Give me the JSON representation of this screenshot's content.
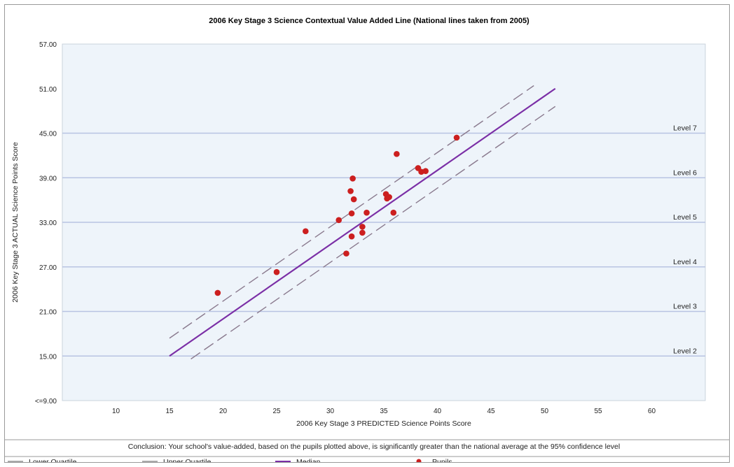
{
  "chart_data": {
    "type": "scatter",
    "title": "2006 Key Stage 3 Science Contextual Value Added Line (National lines taken from 2005)",
    "xlabel": "2006 Key Stage 3 PREDICTED Science Points Score",
    "ylabel": "2006 Key Stage 3 ACTUAL Science Points Score",
    "xlim": [
      5,
      65
    ],
    "ylim": [
      9,
      57
    ],
    "x_ticks": [
      10,
      15,
      20,
      25,
      30,
      35,
      40,
      45,
      50,
      55,
      60
    ],
    "y_ticks": [
      {
        "value": 9,
        "label": "<=9.00"
      },
      {
        "value": 15,
        "label": "15.00"
      },
      {
        "value": 21,
        "label": "21.00"
      },
      {
        "value": 27,
        "label": "27.00"
      },
      {
        "value": 33,
        "label": "33.00"
      },
      {
        "value": 39,
        "label": "39.00"
      },
      {
        "value": 45,
        "label": "45.00"
      },
      {
        "value": 51,
        "label": "51.00"
      },
      {
        "value": 57,
        "label": "57.00"
      }
    ],
    "level_lines": [
      {
        "label": "Level 2",
        "y": 15
      },
      {
        "label": "Level 3",
        "y": 21
      },
      {
        "label": "Level 4",
        "y": 27
      },
      {
        "label": "Level 5",
        "y": 33
      },
      {
        "label": "Level 6",
        "y": 39
      },
      {
        "label": "Level 7",
        "y": 45
      }
    ],
    "lines": [
      {
        "name": "Median",
        "color": "#7b2fa6",
        "style": "solid",
        "points": [
          [
            15,
            15
          ],
          [
            51,
            51
          ]
        ]
      },
      {
        "name": "Upper Quartile",
        "color": "#8a7a8e",
        "style": "dashed",
        "points": [
          [
            15,
            17.4
          ],
          [
            49,
            51.4
          ]
        ]
      },
      {
        "name": "Lower Quartile",
        "color": "#8a7a8e",
        "style": "dashed",
        "points": [
          [
            17,
            14.6
          ],
          [
            51,
            48.6
          ]
        ]
      }
    ],
    "series": [
      {
        "name": "Pupils",
        "color": "#cc1f1f",
        "points": [
          [
            19.5,
            23.5
          ],
          [
            25,
            26.3
          ],
          [
            27.7,
            31.8
          ],
          [
            30.8,
            33.3
          ],
          [
            31.5,
            28.8
          ],
          [
            31.9,
            37.2
          ],
          [
            32,
            34.2
          ],
          [
            32,
            31.1
          ],
          [
            32.1,
            38.9
          ],
          [
            32.2,
            36.1
          ],
          [
            33,
            32.4
          ],
          [
            33,
            31.6
          ],
          [
            33.4,
            34.3
          ],
          [
            35.2,
            36.8
          ],
          [
            35.3,
            36.2
          ],
          [
            35.5,
            36.4
          ],
          [
            35.9,
            34.3
          ],
          [
            36.2,
            42.2
          ],
          [
            38.2,
            40.3
          ],
          [
            38.5,
            39.8
          ],
          [
            38.9,
            39.9
          ],
          [
            41.8,
            44.4
          ]
        ]
      }
    ],
    "grid": false,
    "legend_position": "bottom"
  },
  "conclusion": "Conclusion: Your school's value-added, based on the pupils plotted above, is significantly greater than the national average at the 95% confidence level",
  "legend": [
    {
      "label": "Lower Quartile",
      "kind": "line",
      "color": "#a9a9a9"
    },
    {
      "label": "Upper Quartile",
      "kind": "line",
      "color": "#a9a9a9"
    },
    {
      "label": "Median",
      "kind": "line",
      "color": "#7b2fa6"
    },
    {
      "label": "Pupils",
      "kind": "dot",
      "color": "#cc1f1f"
    }
  ]
}
